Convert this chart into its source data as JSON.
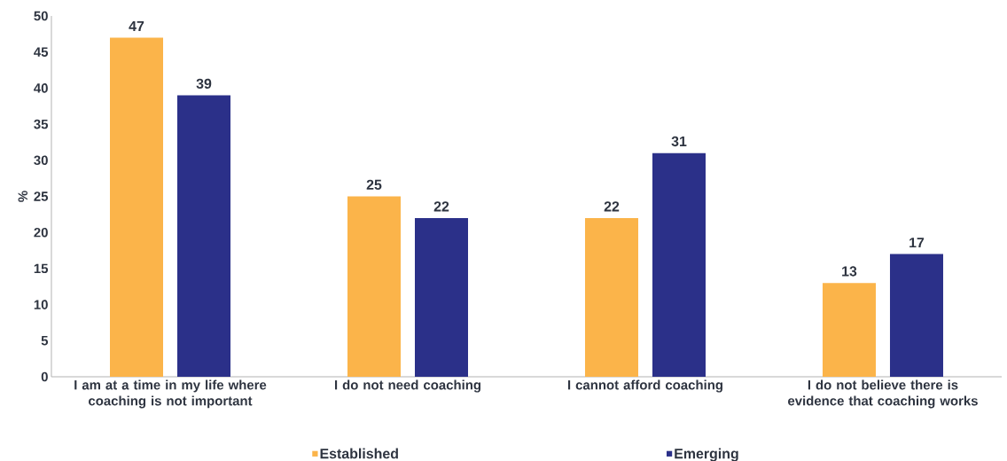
{
  "chart_data": {
    "type": "bar",
    "ylabel": "%",
    "categories": [
      "I am at a time in my life where coaching is not important",
      "I do not need coaching",
      "I cannot afford coaching",
      "I do not believe there is evidence that coaching works"
    ],
    "series": [
      {
        "name": "Established",
        "color": "#fbb44a",
        "values": [
          47,
          25,
          22,
          13
        ]
      },
      {
        "name": "Emerging",
        "color": "#2b3089",
        "values": [
          39,
          22,
          31,
          17
        ]
      }
    ],
    "ylim": [
      0,
      50
    ],
    "yticks": [
      0,
      5,
      10,
      15,
      20,
      25,
      30,
      35,
      40,
      45,
      50
    ],
    "data_labels": true,
    "legend": "bottom",
    "grid": false
  }
}
